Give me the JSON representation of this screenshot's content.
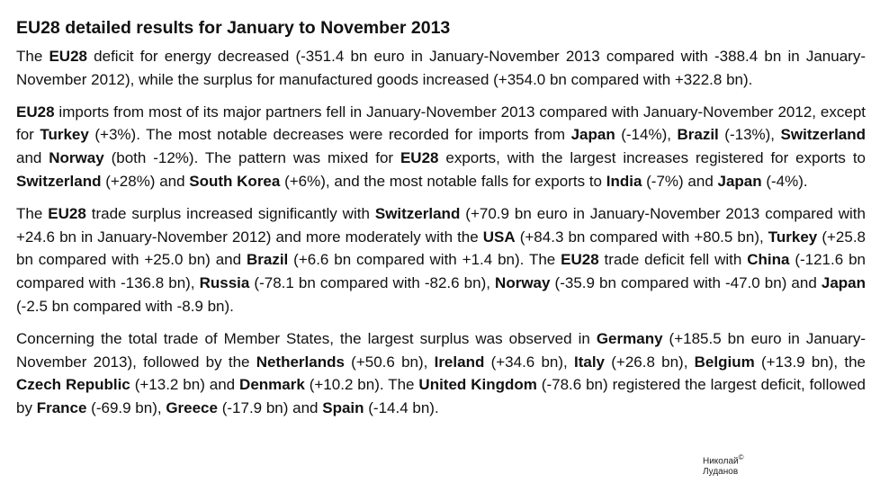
{
  "title": "EU28 detailed results for January to November 2013",
  "paragraphs": [
    [
      {
        "t": "The "
      },
      {
        "t": "EU28",
        "b": true
      },
      {
        "t": " deficit for energy decreased (-351.4 bn euro in January-November 2013 compared with -388.4 bn in January-November 2012), while the surplus for manufactured goods increased (+354.0 bn compared with +322.8 bn)."
      }
    ],
    [
      {
        "t": "EU28",
        "b": true
      },
      {
        "t": " imports from most of its major partners fell in January-November 2013 compared with January-November 2012, except for "
      },
      {
        "t": "Turkey",
        "b": true
      },
      {
        "t": " (+3%). The most notable decreases were recorded for imports from "
      },
      {
        "t": "Japan",
        "b": true
      },
      {
        "t": " (-14%), "
      },
      {
        "t": "Brazil",
        "b": true
      },
      {
        "t": " (-13%), "
      },
      {
        "t": "Switzerland",
        "b": true
      },
      {
        "t": " and "
      },
      {
        "t": "Norway",
        "b": true
      },
      {
        "t": " (both -12%). The pattern was mixed for "
      },
      {
        "t": "EU28",
        "b": true
      },
      {
        "t": " exports, with the largest increases registered for exports to "
      },
      {
        "t": "Switzerland",
        "b": true
      },
      {
        "t": " (+28%) and "
      },
      {
        "t": "South Korea",
        "b": true
      },
      {
        "t": " (+6%), and the most notable falls for exports to "
      },
      {
        "t": "India",
        "b": true
      },
      {
        "t": " (-7%) and "
      },
      {
        "t": "Japan",
        "b": true
      },
      {
        "t": " (-4%)."
      }
    ],
    [
      {
        "t": "The "
      },
      {
        "t": "EU28",
        "b": true
      },
      {
        "t": " trade surplus increased significantly with "
      },
      {
        "t": "Switzerland",
        "b": true
      },
      {
        "t": " (+70.9 bn euro in January-November 2013 compared with +24.6 bn in January-November 2012) and more moderately with the "
      },
      {
        "t": "USA",
        "b": true
      },
      {
        "t": " (+84.3 bn compared with +80.5 bn), "
      },
      {
        "t": "Turkey",
        "b": true
      },
      {
        "t": " (+25.8 bn compared with +25.0 bn) and "
      },
      {
        "t": "Brazil",
        "b": true
      },
      {
        "t": " (+6.6 bn compared with +1.4 bn). The "
      },
      {
        "t": "EU28",
        "b": true
      },
      {
        "t": " trade deficit fell with "
      },
      {
        "t": "China",
        "b": true
      },
      {
        "t": " (-121.6 bn compared with -136.8 bn), "
      },
      {
        "t": "Russia",
        "b": true
      },
      {
        "t": " (-78.1 bn compared with -82.6 bn), "
      },
      {
        "t": "Norway",
        "b": true
      },
      {
        "t": " (-35.9 bn compared with -47.0 bn) and "
      },
      {
        "t": "Japan",
        "b": true
      },
      {
        "t": " (-2.5 bn compared with -8.9 bn)."
      }
    ],
    [
      {
        "t": "Concerning the total trade of Member States, the largest surplus was observed in "
      },
      {
        "t": "Germany",
        "b": true
      },
      {
        "t": " (+185.5 bn euro in January-November 2013), followed by the "
      },
      {
        "t": "Netherlands",
        "b": true
      },
      {
        "t": " (+50.6 bn), "
      },
      {
        "t": "Ireland",
        "b": true
      },
      {
        "t": " (+34.6 bn), "
      },
      {
        "t": "Italy",
        "b": true
      },
      {
        "t": " (+26.8 bn), "
      },
      {
        "t": "Belgium",
        "b": true
      },
      {
        "t": " (+13.9 bn), the "
      },
      {
        "t": "Czech Republic",
        "b": true
      },
      {
        "t": " (+13.2 bn) and "
      },
      {
        "t": "Denmark",
        "b": true
      },
      {
        "t": " (+10.2 bn). The "
      },
      {
        "t": "United Kingdom",
        "b": true
      },
      {
        "t": " (-78.6 bn) registered the largest deficit, followed by "
      },
      {
        "t": "France",
        "b": true
      },
      {
        "t": " (-69.9 bn), "
      },
      {
        "t": "Greece",
        "b": true
      },
      {
        "t": " (-17.9 bn) and "
      },
      {
        "t": "Spain",
        "b": true
      },
      {
        "t": " (-14.4 bn)."
      }
    ]
  ],
  "watermark": {
    "line1": "Николай",
    "copyright": "©",
    "line2": "Луданов"
  }
}
